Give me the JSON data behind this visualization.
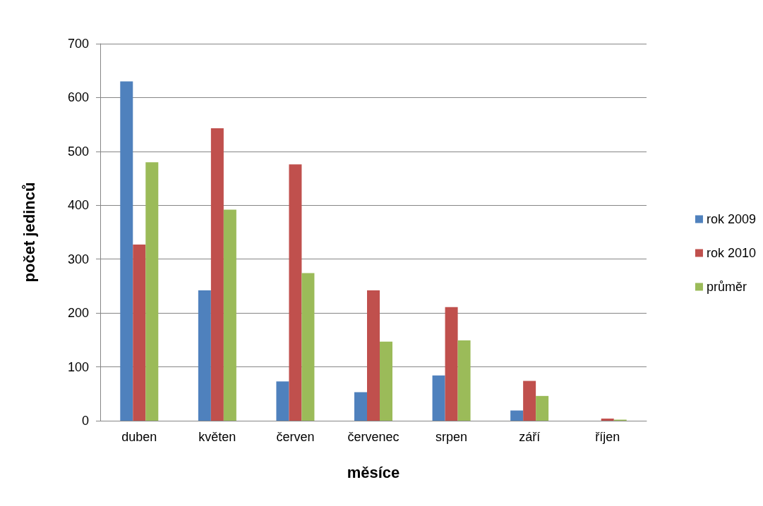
{
  "chart_data": {
    "type": "bar",
    "xlabel": "měsíce",
    "ylabel": "počet jedinců",
    "categories": [
      "duben",
      "květen",
      "červen",
      "červenec",
      "srpen",
      "září",
      "říjen"
    ],
    "series": [
      {
        "name": "rok 2009",
        "color": "#4f81bd",
        "values": [
          630,
          242,
          73,
          53,
          84,
          19,
          0
        ]
      },
      {
        "name": "rok 2010",
        "color": "#c0504d",
        "values": [
          327,
          543,
          476,
          242,
          211,
          74,
          4
        ]
      },
      {
        "name": "průměr",
        "color": "#9bbb59",
        "values": [
          480,
          392,
          274,
          147,
          149,
          46,
          2
        ]
      }
    ],
    "ylim": [
      0,
      700
    ],
    "yticks": [
      0,
      100,
      200,
      300,
      400,
      500,
      600,
      700
    ],
    "grid": "y",
    "legend": "right"
  }
}
